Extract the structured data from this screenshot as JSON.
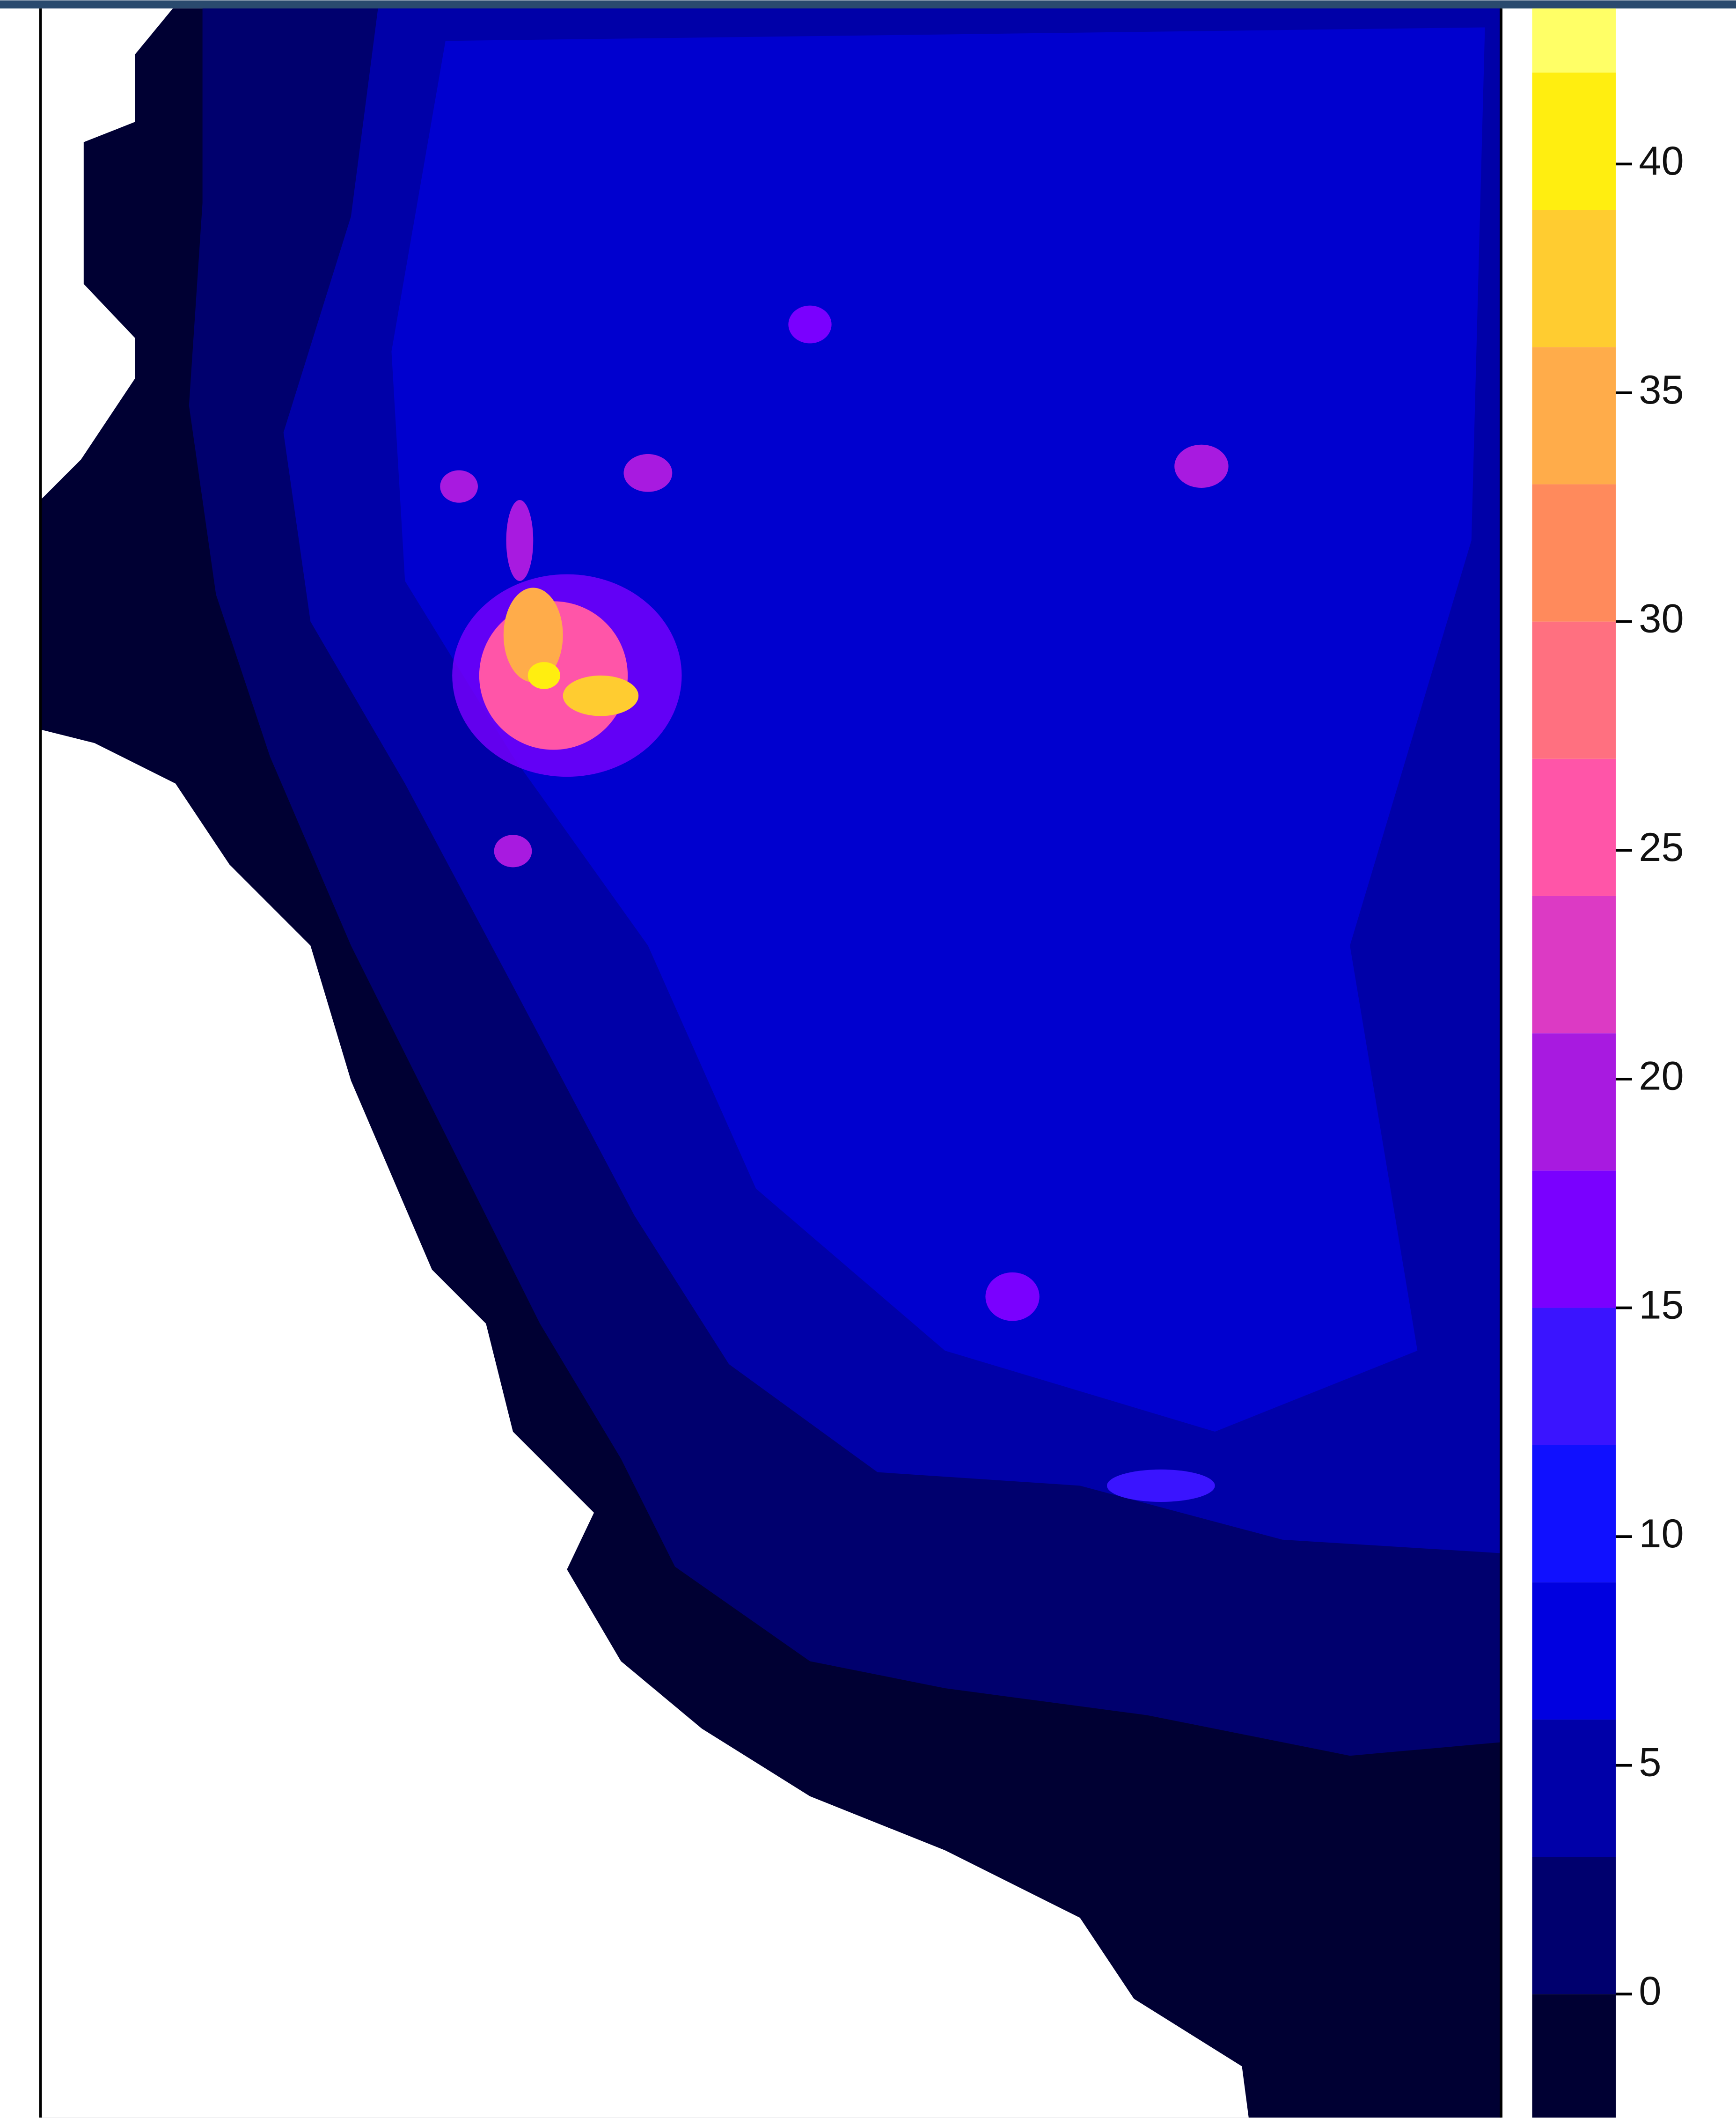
{
  "chart_data": {
    "type": "raster",
    "colorbar": {
      "breaks": [
        -2.7,
        0,
        3,
        6,
        9,
        12,
        15,
        18,
        21,
        24,
        27,
        30,
        33,
        36,
        39,
        42,
        43.4
      ],
      "colors": [
        "#000033",
        "#00006e",
        "#0000a8",
        "#0000e0",
        "#1010ff",
        "#3a14ff",
        "#7a00ff",
        "#a81ae0",
        "#dc3ac4",
        "#ff55a8",
        "#ff7080",
        "#ff8a5c",
        "#ffac4a",
        "#ffcc30",
        "#ffee10",
        "#ffff66"
      ],
      "lim": [
        -2.7,
        43.4
      ],
      "ticks": [
        0,
        5,
        10,
        15,
        20,
        25,
        30,
        35,
        40
      ]
    }
  }
}
